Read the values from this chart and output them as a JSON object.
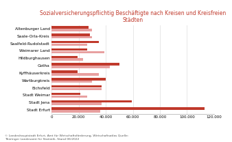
{
  "title": "Sozialversicherungspflichtig Beschäftigte nach Kreisen und Kreisfreien\nStädten",
  "title_color": "#c0392b",
  "categories": [
    "Altenburger Land",
    "Saale-Orla-Kreis",
    "Saalfeld-Rudolstadt",
    "Weimarer Land",
    "Hildburghausen",
    "Gotha",
    "Kyffhäuserkreis",
    "Wartburgkreis",
    "Eichsfeld",
    "Stadt Weimar",
    "Stadt Jena",
    "Stadt Erfurt"
  ],
  "values_dark": [
    27000,
    28000,
    35000,
    26000,
    19000,
    50000,
    19000,
    40000,
    37000,
    21000,
    59000,
    113000
  ],
  "values_light": [
    30000,
    30000,
    26000,
    39000,
    23000,
    43000,
    35000,
    30000,
    37000,
    26000,
    37000,
    36000
  ],
  "bar_color_dark": "#c0392b",
  "bar_color_light": "#e8a0a0",
  "xlim": [
    0,
    120000
  ],
  "xticks": [
    0,
    20000,
    40000,
    60000,
    80000,
    100000,
    120000
  ],
  "xtick_labels": [
    "0",
    "20.000",
    "40.000",
    "60.000",
    "80.000",
    "100.000",
    "120.000"
  ],
  "footnote": "© Landeshauptstadt Erfurt, Amt für Wirtschaftsförderung, Wirtschaftsatlas Quelle:\nThüringer Landesamt für Statistik, Stand 06/2022",
  "bg_color": "#ffffff",
  "grid_color": "#dddddd"
}
